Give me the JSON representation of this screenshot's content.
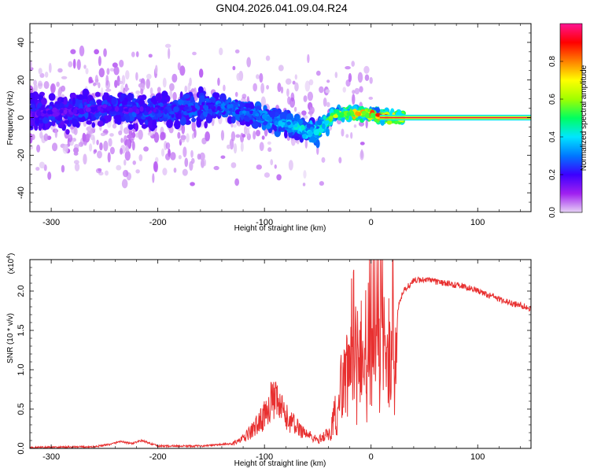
{
  "title": "GN04.2026.041.09.04.R24",
  "chart_data": [
    {
      "type": "heatmap",
      "xlabel": "Height of straight line (km)",
      "ylabel": "Frequency (Hz)",
      "xlim": [
        -320,
        150
      ],
      "ylim": [
        -50,
        50
      ],
      "x_ticks": [
        -300,
        -200,
        -100,
        0,
        100
      ],
      "y_ticks": [
        -40,
        -20,
        0,
        20,
        40
      ],
      "colorbar": {
        "label": "Normalized spectral amplitude",
        "range": [
          0,
          1
        ],
        "ticks": [
          "0.0",
          "0.2",
          "0.4",
          "0.6",
          "0.8"
        ],
        "colors": [
          "#e6d2f5",
          "#a020f0",
          "#3c00ff",
          "#0078ff",
          "#00e6ff",
          "#00ff60",
          "#a0ff00",
          "#ffff00",
          "#ff8000",
          "#ff0000",
          "#ff1493"
        ]
      },
      "ridge": {
        "x": [
          -320,
          -280,
          -250,
          -220,
          -200,
          -170,
          -150,
          -130,
          -110,
          -90,
          -75,
          -60,
          -50,
          -42,
          -35,
          -25,
          -15,
          -5,
          5,
          20,
          60,
          100,
          150
        ],
        "y": [
          2,
          3,
          5,
          4,
          4,
          5,
          6,
          5,
          2,
          -2,
          -4,
          -7,
          -8,
          -3,
          2,
          2,
          2,
          2,
          1,
          0,
          0,
          0,
          0
        ]
      },
      "ridge_amplitude": {
        "x": [
          -320,
          -200,
          -150,
          -110,
          -80,
          -50,
          -35,
          -10,
          20,
          150
        ],
        "amp": [
          0.2,
          0.25,
          0.3,
          0.35,
          0.4,
          0.5,
          0.65,
          0.8,
          0.95,
          0.95
        ]
      }
    },
    {
      "type": "line",
      "xlabel": "Height of straight line (km)",
      "ylabel": "SNR (10 * v/v)",
      "y_multiplier": "(x10",
      "y_multiplier_exp": "4",
      "y_multiplier_close": ")",
      "xlim": [
        -320,
        150
      ],
      "ylim": [
        0,
        2.4
      ],
      "x_ticks": [
        -300,
        -200,
        -100,
        0,
        100
      ],
      "y_ticks": [
        "0.0",
        "0.5",
        "1.0",
        "1.5",
        "2.0"
      ],
      "color": "#e83030",
      "series": [
        {
          "x": [
            -320,
            -260,
            -245,
            -235,
            -225,
            -215,
            -200,
            -160,
            -130,
            -120,
            -110,
            -100,
            -95,
            -88,
            -80,
            -70,
            -60,
            -50,
            -45,
            -40,
            -35,
            -30,
            -25,
            -20,
            -15,
            -10,
            -5,
            0,
            5,
            8,
            10,
            13,
            17,
            22,
            30,
            40,
            50,
            60,
            70,
            80,
            90,
            100,
            110,
            120,
            130,
            140,
            150
          ],
          "y": [
            0.01,
            0.02,
            0.05,
            0.09,
            0.06,
            0.1,
            0.03,
            0.03,
            0.06,
            0.12,
            0.25,
            0.42,
            0.6,
            0.58,
            0.4,
            0.28,
            0.18,
            0.1,
            0.15,
            0.2,
            0.4,
            0.72,
            1.15,
            1.8,
            1.4,
            1.2,
            1.55,
            1.8,
            1.9,
            2.1,
            2.15,
            1.7,
            1.55,
            1.65,
            2.0,
            2.13,
            2.15,
            2.12,
            2.1,
            2.08,
            2.05,
            2.0,
            1.95,
            1.9,
            1.85,
            1.82,
            1.78
          ]
        }
      ]
    }
  ]
}
